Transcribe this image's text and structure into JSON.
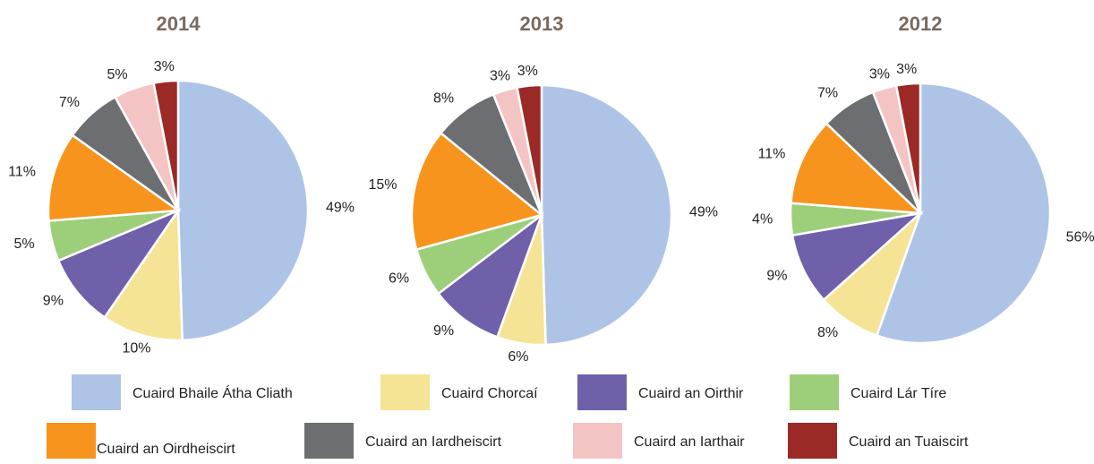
{
  "chart_data": [
    {
      "type": "pie",
      "title": "2014",
      "values": [
        49,
        10,
        9,
        5,
        11,
        7,
        5,
        3
      ],
      "value_labels": [
        "49%",
        "10%",
        "9%",
        "5%",
        "11%",
        "7%",
        "5%",
        "3%"
      ]
    },
    {
      "type": "pie",
      "title": "2013",
      "values": [
        49,
        6,
        9,
        6,
        15,
        8,
        3,
        3
      ],
      "value_labels": [
        "49%",
        "6%",
        "9%",
        "6%",
        "15%",
        "8%",
        "3%",
        "3%"
      ]
    },
    {
      "type": "pie",
      "title": "2012",
      "values": [
        56,
        8,
        9,
        4,
        11,
        7,
        3,
        3
      ],
      "value_labels": [
        "56%",
        "8%",
        "9%",
        "4%",
        "11%",
        "7%",
        "3%",
        "3%"
      ]
    }
  ],
  "legend": {
    "labels": [
      "Cuaird Bhaile Átha Cliath",
      "Cuaird Chorcaí",
      "Cuaird an Oirthir",
      "Cuaird Lár Tíre",
      "Cuaird an Oirdheiscirt",
      "Cuaird an Iardheiscirt",
      "Cuaird an Iarthair",
      "Cuaird an Tuaiscirt"
    ],
    "colors": [
      "#aec4e6",
      "#f5e495",
      "#7060aa",
      "#9dcf7b",
      "#f7941d",
      "#6d6e71",
      "#f4c4c4",
      "#9b2a27"
    ]
  }
}
